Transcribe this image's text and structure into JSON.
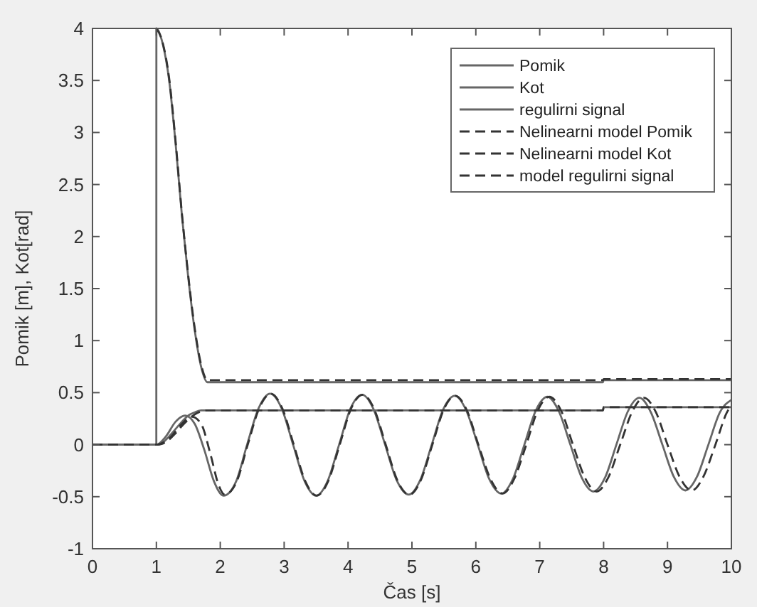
{
  "chart_data": {
    "type": "line",
    "xlabel": "Čas [s]",
    "ylabel": "Pomik [m], Kot[rad]",
    "xlim": [
      0,
      10
    ],
    "xticks": [
      0,
      1,
      2,
      3,
      4,
      5,
      6,
      7,
      8,
      9,
      10
    ],
    "ylim": [
      -1,
      4
    ],
    "yticks": [
      -1,
      -0.5,
      0,
      0.5,
      1,
      1.5,
      2,
      2.5,
      3,
      3.5,
      4
    ],
    "grid": false,
    "legend": "top right",
    "series": [
      {
        "name": "Pomik",
        "color": "#666666",
        "line_style": "solid",
        "x": [
          0,
          1,
          1.15,
          1.3,
          1.45,
          1.6,
          1.75,
          1.9,
          2.05,
          2.25,
          2.42,
          2.6,
          2.78,
          2.96,
          3.14,
          3.32,
          3.5,
          3.68,
          3.86,
          4.04,
          4.22,
          4.4,
          4.58,
          4.76,
          4.95,
          5.13,
          5.31,
          5.49,
          5.67,
          5.85,
          6.03,
          6.21,
          6.4,
          6.58,
          6.76,
          6.94,
          7.12,
          7.3,
          7.48,
          7.66,
          7.84,
          8.02,
          8.2,
          8.38,
          8.56,
          8.74,
          8.92,
          9.1,
          9.28,
          9.46,
          9.64,
          9.82,
          10
        ],
        "values": [
          0,
          0,
          0.08,
          0.22,
          0.28,
          0.2,
          -0.05,
          -0.35,
          -0.49,
          -0.35,
          0,
          0.35,
          0.49,
          0.35,
          0,
          -0.35,
          -0.49,
          -0.35,
          0,
          0.35,
          0.48,
          0.34,
          0,
          -0.34,
          -0.48,
          -0.34,
          0,
          0.34,
          0.47,
          0.33,
          0,
          -0.33,
          -0.47,
          -0.33,
          0,
          0.33,
          0.46,
          0.32,
          0,
          -0.32,
          -0.45,
          -0.32,
          0,
          0.32,
          0.45,
          0.31,
          0,
          -0.31,
          -0.44,
          -0.31,
          0,
          0.31,
          0.43
        ]
      },
      {
        "name": "Kot",
        "color": "#666666",
        "line_style": "solid",
        "x": [
          0,
          1,
          1.1,
          1.2,
          1.3,
          1.4,
          1.5,
          1.6,
          1.7,
          7.99,
          8,
          10
        ],
        "values": [
          0,
          0,
          0.02,
          0.08,
          0.15,
          0.22,
          0.28,
          0.31,
          0.33,
          0.33,
          0.36,
          0.36
        ]
      },
      {
        "name": "regulirni signal",
        "color": "#666666",
        "line_style": "solid",
        "x": [
          0,
          0.999,
          1,
          1.1,
          1.2,
          1.3,
          1.4,
          1.5,
          1.6,
          1.7,
          1.8,
          7.99,
          8,
          10
        ],
        "values": [
          0,
          0,
          4,
          3.85,
          3.5,
          2.9,
          2.2,
          1.6,
          1.1,
          0.75,
          0.6,
          0.6,
          0.62,
          0.62
        ]
      },
      {
        "name": "Nelinearni model Pomik",
        "color": "#333333",
        "line_style": "dashed",
        "x": [
          0,
          1,
          1.2,
          1.4,
          1.55,
          1.7,
          1.85,
          1.97,
          2.07,
          2.26,
          2.43,
          2.61,
          2.79,
          2.97,
          3.15,
          3.33,
          3.51,
          3.69,
          3.87,
          4.05,
          4.23,
          4.41,
          4.59,
          4.77,
          4.96,
          5.14,
          5.32,
          5.5,
          5.68,
          5.86,
          6.04,
          6.23,
          6.42,
          6.6,
          6.79,
          6.97,
          7.15,
          7.34,
          7.52,
          7.71,
          7.89,
          8.07,
          8.26,
          8.45,
          8.63,
          8.82,
          9.0,
          9.19,
          9.38,
          9.56,
          9.75,
          9.93,
          10
        ],
        "values": [
          0,
          0,
          0.06,
          0.2,
          0.27,
          0.2,
          -0.1,
          -0.38,
          -0.48,
          -0.35,
          0,
          0.35,
          0.49,
          0.35,
          0,
          -0.35,
          -0.49,
          -0.35,
          0,
          0.35,
          0.48,
          0.34,
          0,
          -0.34,
          -0.48,
          -0.34,
          0,
          0.34,
          0.47,
          0.33,
          0,
          -0.33,
          -0.47,
          -0.33,
          0,
          0.33,
          0.46,
          0.32,
          0,
          -0.32,
          -0.45,
          -0.32,
          0,
          0.32,
          0.45,
          0.31,
          0,
          -0.31,
          -0.44,
          -0.31,
          0,
          0.31,
          0.38
        ]
      },
      {
        "name": "Nelinearni model Kot",
        "color": "#333333",
        "line_style": "dashed",
        "x": [
          0,
          1,
          1.1,
          1.2,
          1.3,
          1.4,
          1.5,
          1.6,
          1.7,
          1.8,
          7.99,
          8,
          10
        ],
        "values": [
          0,
          0,
          0.01,
          0.05,
          0.11,
          0.18,
          0.24,
          0.29,
          0.32,
          0.33,
          0.33,
          0.36,
          0.36
        ]
      },
      {
        "name": "model regulirni signal",
        "color": "#333333",
        "line_style": "dashed",
        "x": [
          1,
          1.1,
          1.2,
          1.3,
          1.4,
          1.5,
          1.6,
          1.7,
          1.8,
          7.99,
          8,
          10
        ],
        "values": [
          4,
          3.86,
          3.52,
          2.92,
          2.22,
          1.62,
          1.12,
          0.77,
          0.62,
          0.62,
          0.63,
          0.63
        ]
      }
    ]
  }
}
